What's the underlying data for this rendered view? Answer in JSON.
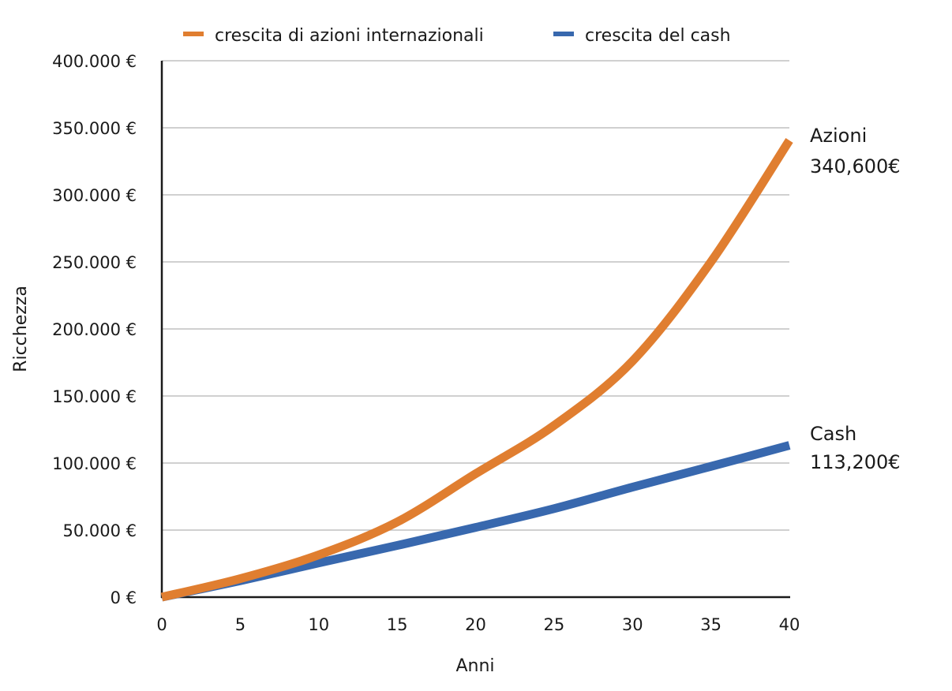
{
  "chart_data": {
    "type": "line",
    "title": "",
    "xlabel": "Anni",
    "ylabel": "Ricchezza",
    "xlim": [
      0,
      40
    ],
    "ylim": [
      0,
      400000
    ],
    "x_ticks": [
      "0",
      "5",
      "10",
      "15",
      "20",
      "25",
      "30",
      "35",
      "40"
    ],
    "y_ticks": [
      "0 €",
      "50.000 €",
      "100.000 €",
      "150.000 €",
      "200.000 €",
      "250.000 €",
      "300.000 €",
      "350.000 €",
      "400.000 €"
    ],
    "grid": "horizontal",
    "legend_position": "top",
    "x": [
      0,
      5,
      10,
      15,
      20,
      25,
      30,
      35,
      40
    ],
    "series": [
      {
        "name": "crescita di azioni internazionali",
        "color": "#E07E30",
        "values": [
          0,
          13800,
          31500,
          56000,
          92000,
          128000,
          176000,
          250000,
          340600
        ]
      },
      {
        "name": "crescita del cash",
        "color": "#3868AE",
        "values": [
          0,
          12200,
          25500,
          38500,
          52000,
          66000,
          82000,
          97500,
          113200
        ]
      }
    ],
    "annotations": [
      {
        "series": "crescita di azioni internazionali",
        "line1": "Azioni",
        "line2": "340,600€"
      },
      {
        "series": "crescita del cash",
        "line1": "Cash",
        "line2": "113,200€"
      }
    ]
  }
}
